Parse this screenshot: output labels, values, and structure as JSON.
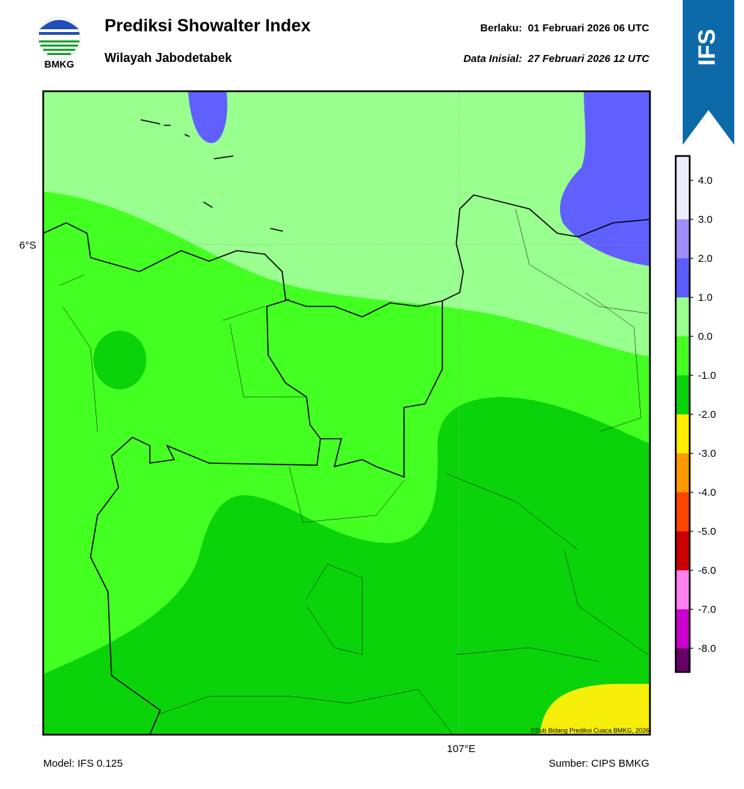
{
  "header": {
    "logo_text": "BMKG",
    "title": "Prediksi Showalter Index",
    "subtitle": "Wilayah Jabodetabek",
    "valid": "Berlaku:  01 Februari 2026 06 UTC",
    "initial": "Data Inisial:  27 Februari 2026 12 UTC",
    "badge": "IFS"
  },
  "map": {
    "lat_label": "6°S",
    "lon_label": "107°E",
    "copyright": "©Sub Bidang Prediksi Cuaca BMKG, 2026"
  },
  "colorbar": {
    "ticks": [
      {
        "value": 4,
        "label": "4.0"
      },
      {
        "value": 3,
        "label": "3.0"
      },
      {
        "value": 2,
        "label": "2.0"
      },
      {
        "value": 1,
        "label": "1.0"
      },
      {
        "value": 0,
        "label": "0.0"
      },
      {
        "value": -1,
        "label": "-1.0"
      },
      {
        "value": -2,
        "label": "-2.0"
      },
      {
        "value": -3,
        "label": "-3.0"
      },
      {
        "value": -4,
        "label": "-4.0"
      },
      {
        "value": -5,
        "label": "-5.0"
      },
      {
        "value": -6,
        "label": "-6.0"
      },
      {
        "value": -7,
        "label": "-7.0"
      },
      {
        "value": -8,
        "label": "-8.0"
      }
    ],
    "colors": [
      "#ececff",
      "#9e8eff",
      "#5c5cff",
      "#99ff8f",
      "#44ff22",
      "#0ad30a",
      "#ffee00",
      "#ff9900",
      "#ff4400",
      "#cc0000",
      "#ff80ee",
      "#cc00cc",
      "#660066"
    ]
  },
  "footer": {
    "model": "Model: IFS 0.125",
    "source": "Sumber: CIPS BMKG"
  }
}
